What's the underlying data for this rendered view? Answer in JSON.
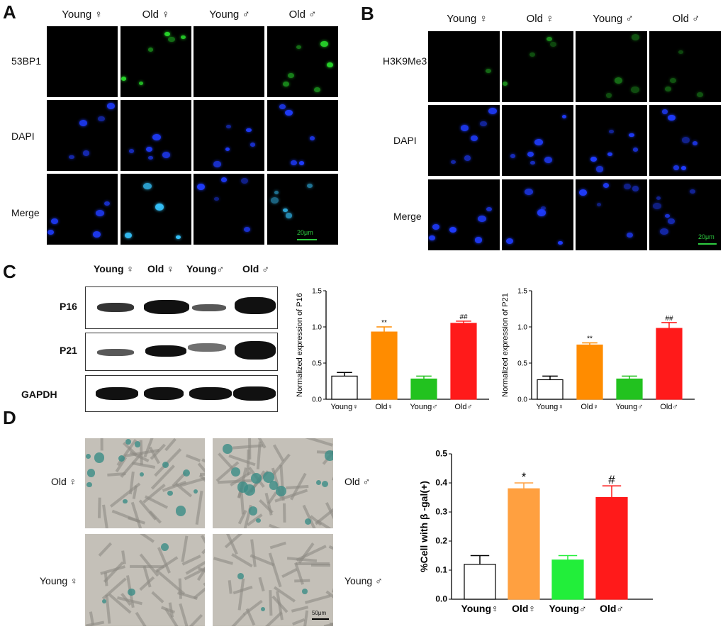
{
  "panel_letters": {
    "a": "A",
    "b": "B",
    "c": "C",
    "d": "D"
  },
  "panelA": {
    "columns": [
      "Young ♀",
      "Old ♀",
      "Young ♂",
      "Old ♂"
    ],
    "rows": [
      "53BP1",
      "DAPI",
      "Merge"
    ],
    "scale_label": "20μm"
  },
  "panelB": {
    "columns": [
      "Young ♀",
      "Old ♀",
      "Young ♂",
      "Old ♂"
    ],
    "rows": [
      "H3K9Me3",
      "DAPI",
      "Merge"
    ],
    "scale_label": "20μm"
  },
  "panelC": {
    "columns": [
      "Young ♀",
      "Old ♀",
      "Young♂",
      "Old ♂"
    ],
    "rows": [
      "P16",
      "P21",
      "GAPDH"
    ]
  },
  "panelD": {
    "left_labels": [
      "Old ♀",
      "Young ♀"
    ],
    "right_labels": [
      "Old ♂",
      "Young ♂"
    ],
    "scale_label": "50μm"
  },
  "colors": {
    "young_f": "#ffffff",
    "old_f": "#ff8c00",
    "young_m": "#22c21f",
    "old_m": "#ff1a1a",
    "old_f_d": "#ffa040",
    "young_m_d": "#22ee3a"
  },
  "chart_data": [
    {
      "type": "bar",
      "categories": [
        "Young♀",
        "Old♀",
        "Young♂",
        "Old♂"
      ],
      "values": [
        0.32,
        0.93,
        0.28,
        1.05
      ],
      "errors": [
        0.05,
        0.07,
        0.04,
        0.03
      ],
      "annotations": [
        "",
        "**",
        "",
        "##"
      ],
      "ylabel": "Normalized expression of P16",
      "ylim": [
        0,
        1.5
      ],
      "yticks": [
        "0.0",
        "0.5",
        "1.0",
        "1.5"
      ]
    },
    {
      "type": "bar",
      "categories": [
        "Young♀",
        "Old♀",
        "Young♂",
        "Old♂"
      ],
      "values": [
        0.27,
        0.75,
        0.28,
        0.98
      ],
      "errors": [
        0.05,
        0.03,
        0.04,
        0.08
      ],
      "annotations": [
        "",
        "**",
        "",
        "##"
      ],
      "ylabel": "Normalized expression of P21",
      "ylim": [
        0,
        1.5
      ],
      "yticks": [
        "0.0",
        "0.5",
        "1.0",
        "1.5"
      ]
    },
    {
      "type": "bar",
      "categories": [
        "Young♀",
        "Old♀",
        "Young♂",
        "Old♂"
      ],
      "values": [
        0.12,
        0.38,
        0.135,
        0.35
      ],
      "errors": [
        0.03,
        0.02,
        0.015,
        0.04
      ],
      "annotations": [
        "",
        "*",
        "",
        "#"
      ],
      "ylabel": "%Cell with β -gal(+)",
      "ylim": [
        0,
        0.5
      ],
      "yticks": [
        "0.0",
        "0.1",
        "0.2",
        "0.3",
        "0.4",
        "0.5"
      ]
    }
  ]
}
